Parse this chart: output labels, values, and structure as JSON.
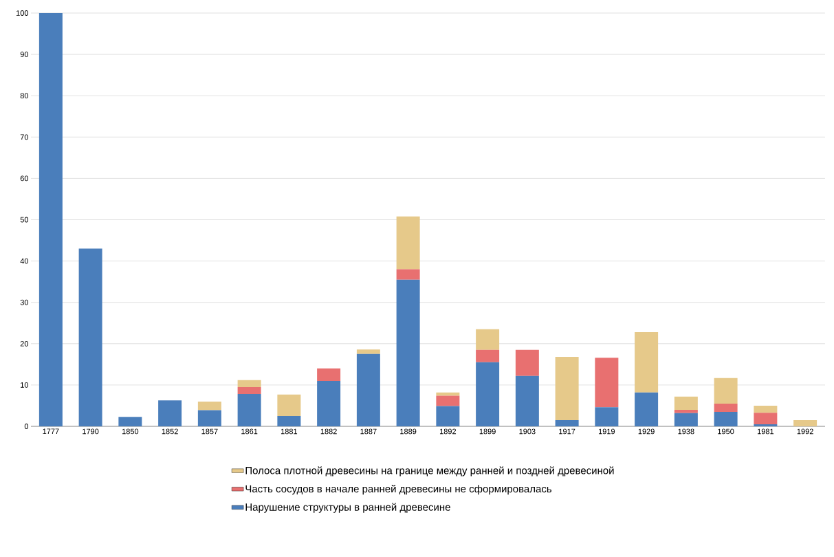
{
  "chart_data": {
    "type": "bar",
    "stacked": true,
    "categories": [
      "1777",
      "1790",
      "1850",
      "1852",
      "1857",
      "1861",
      "1881",
      "1882",
      "1887",
      "1889",
      "1892",
      "1899",
      "1903",
      "1917",
      "1919",
      "1929",
      "1938",
      "1950",
      "1981",
      "1992"
    ],
    "series": [
      {
        "name": "Нарушение структуры в ранней древесине",
        "color": "#4a7ebb",
        "values": [
          100,
          43,
          2.3,
          6.3,
          3.9,
          7.8,
          2.5,
          11,
          17.5,
          35.5,
          4.9,
          15.5,
          12.2,
          1.5,
          4.6,
          8.2,
          3.2,
          3.5,
          0.5,
          0
        ]
      },
      {
        "name": "Часть сосудов в начале ранней древесины не сформировалась",
        "color": "#e87070",
        "values": [
          0,
          0,
          0,
          0,
          0,
          1.7,
          0,
          3,
          0,
          2.5,
          2.5,
          3,
          6.3,
          0,
          12,
          0,
          0.8,
          2,
          2.8,
          0
        ]
      },
      {
        "name": "Полоса плотной древесины на границе между ранней и поздней древесиной",
        "color": "#e6c98a",
        "values": [
          0,
          0,
          0,
          0,
          2.1,
          1.7,
          5.2,
          0,
          1.1,
          12.8,
          0.8,
          5,
          0,
          15.3,
          0,
          14.6,
          3.2,
          6.2,
          1.7,
          1.5
        ]
      }
    ],
    "ylim": [
      0,
      100
    ],
    "yticks": [
      0,
      10,
      20,
      30,
      40,
      50,
      60,
      70,
      80,
      90,
      100
    ],
    "grid": "y",
    "legend": "bottom"
  }
}
